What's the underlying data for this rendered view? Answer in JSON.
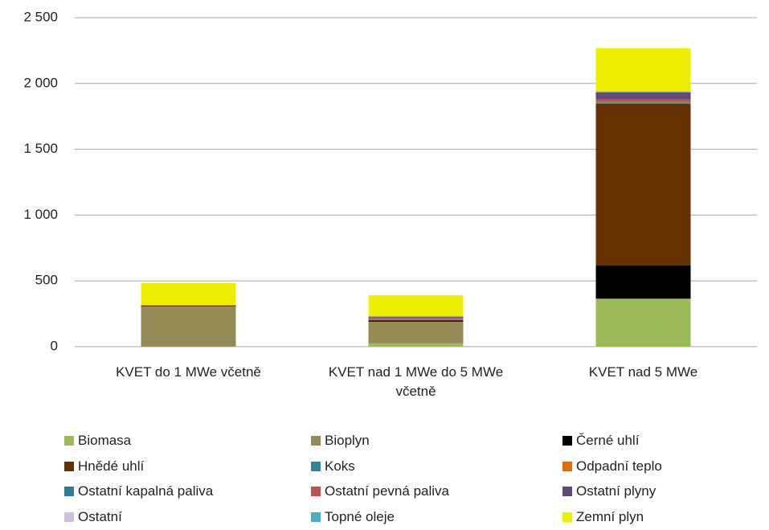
{
  "chart_data": {
    "type": "stacked_bar",
    "categories": [
      "KVET do 1 MWe včetně",
      "KVET nad 1 MWe do 5 MWe včetně",
      "KVET nad 5 MWe"
    ],
    "series": [
      {
        "name": "Biomasa",
        "color": "#9bbb59",
        "values": [
          2,
          25,
          360
        ]
      },
      {
        "name": "Bioplyn",
        "color": "#948a54",
        "values": [
          303,
          165,
          5
        ]
      },
      {
        "name": "Černé uhlí",
        "color": "#000000",
        "values": [
          0,
          8,
          252
        ]
      },
      {
        "name": "Hnědé uhlí",
        "color": "#663300",
        "values": [
          8,
          5,
          1229
        ]
      },
      {
        "name": "Koks",
        "color": "#31849b",
        "values": [
          0,
          2,
          5
        ]
      },
      {
        "name": "Odpadní teplo",
        "color": "#e36c09",
        "values": [
          0,
          3,
          10
        ]
      },
      {
        "name": "Ostatní kapalná paliva",
        "color": "#2e7f8f",
        "values": [
          0,
          2,
          3
        ]
      },
      {
        "name": "Ostatní pevná paliva",
        "color": "#c0504d",
        "values": [
          2,
          12,
          15
        ]
      },
      {
        "name": "Ostatní plyny",
        "color": "#604a7b",
        "values": [
          0,
          6,
          55
        ]
      },
      {
        "name": "Ostatní",
        "color": "#ccc0da",
        "values": [
          0,
          2,
          3
        ]
      },
      {
        "name": "Topné oleje",
        "color": "#4bacc6",
        "values": [
          0,
          4,
          3
        ]
      },
      {
        "name": "Zemní plyn",
        "color": "#eeee00",
        "values": [
          168,
          157,
          328
        ]
      }
    ],
    "ylim": [
      0,
      2500
    ],
    "yticks": [
      0,
      500,
      {
        "value": 1000,
        "label": "1 000"
      },
      {
        "value": 1500,
        "label": "1 500"
      },
      {
        "value": 2000,
        "label": "2 000"
      },
      {
        "value": 2500,
        "label": "2 500"
      }
    ],
    "grid": true,
    "legend": "bottom"
  }
}
